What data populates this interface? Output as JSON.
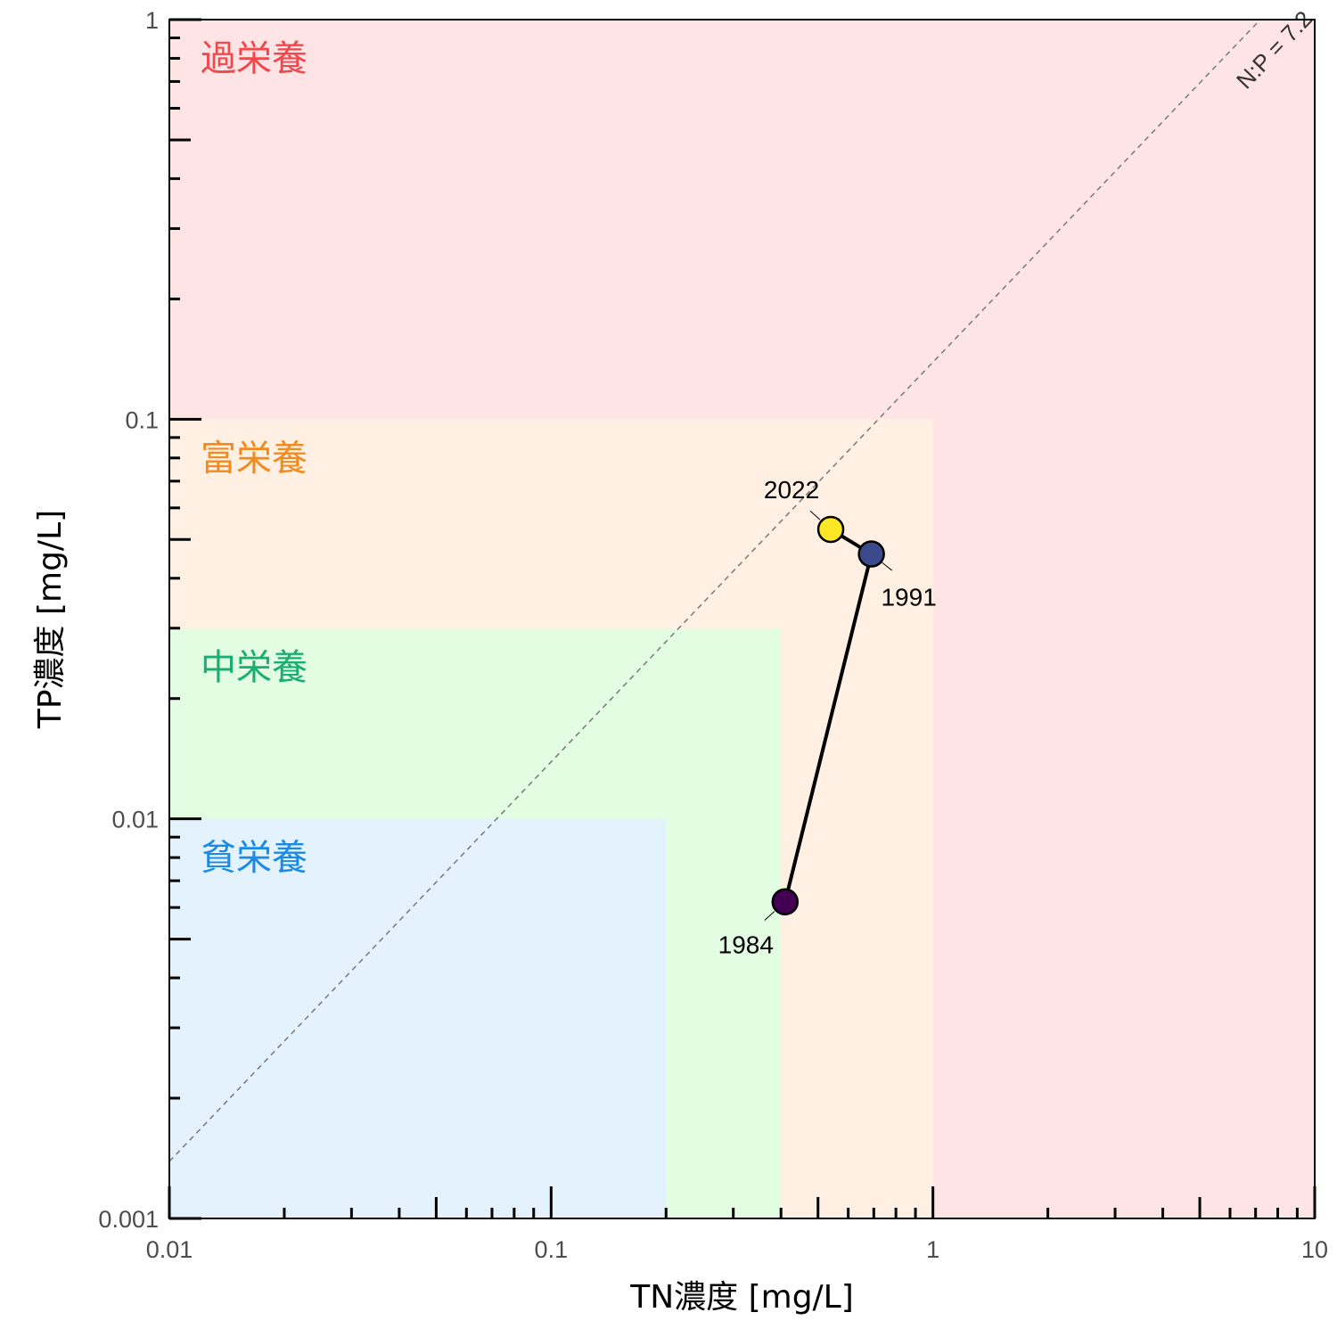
{
  "chart_data": {
    "type": "scatter",
    "xlabel": "TN濃度 [mg/L]",
    "ylabel": "TP濃度 [mg/L]",
    "x_scale": "log",
    "y_scale": "log",
    "xlim": [
      0.01,
      10
    ],
    "ylim": [
      0.001,
      1
    ],
    "x_major_ticks": [
      0.01,
      0.1,
      1,
      10
    ],
    "x_tick_labels": [
      "0.01",
      "0.1",
      "1",
      "10"
    ],
    "y_major_ticks": [
      0.001,
      0.01,
      0.1,
      1
    ],
    "y_tick_labels": [
      "0.001",
      "0.01",
      "0.1",
      "1"
    ],
    "grid": false,
    "zones": [
      {
        "label": "過栄養",
        "tn_max": 10,
        "tp_max": 1,
        "fill": "#ffe4e6",
        "text_color": "#f2474b"
      },
      {
        "label": "富栄養",
        "tn_max": 1,
        "tp_max": 0.1,
        "fill": "#fff0e3",
        "text_color": "#f28a1e"
      },
      {
        "label": "中栄養",
        "tn_max": 0.4,
        "tp_max": 0.03,
        "fill": "#e3fde3",
        "text_color": "#1aae72"
      },
      {
        "label": "貧栄養",
        "tn_max": 0.2,
        "tp_max": 0.01,
        "fill": "#e3f2fd",
        "text_color": "#1a8ae8"
      }
    ],
    "ratio_line": {
      "label": "N:P = 7.2",
      "ratio": 7.2
    },
    "points": [
      {
        "label": "1984",
        "tn": 0.41,
        "tp": 0.0062,
        "color": "#440154"
      },
      {
        "label": "1991",
        "tn": 0.69,
        "tp": 0.046,
        "color": "#3b4a8a"
      },
      {
        "label": "2022",
        "tn": 0.54,
        "tp": 0.053,
        "color": "#fde725"
      }
    ]
  }
}
